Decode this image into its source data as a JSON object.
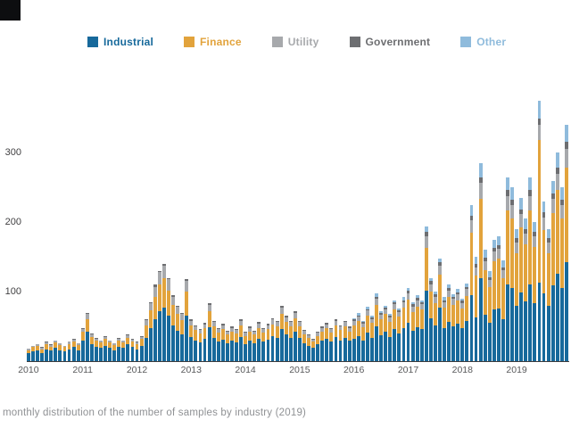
{
  "legend": {
    "items": [
      {
        "label": "Industrial",
        "color": "#17699B"
      },
      {
        "label": "Finance",
        "color": "#E2A33C"
      },
      {
        "label": "Utility",
        "color": "#A7A9AC"
      },
      {
        "label": "Government",
        "color": "#6D6E71"
      },
      {
        "label": "Other",
        "color": "#8FBBDC"
      }
    ]
  },
  "caption": {
    "text": "monthly distribution of the number of samples by industry (2019)"
  },
  "chart_data": {
    "type": "bar",
    "stacked": true,
    "title": "",
    "xlabel": "",
    "ylabel": "",
    "ylim": [
      0,
      420
    ],
    "grid": false,
    "legend_position": "top",
    "y_tick_labels": [
      "100",
      "200",
      "300"
    ],
    "x_tick_labels": [
      "2010",
      "2011",
      "2012",
      "2013",
      "2014",
      "2015",
      "2016",
      "2017",
      "2018",
      "2019"
    ],
    "bars_per_x_label": 12,
    "series": [
      {
        "name": "Industrial",
        "color": "#17699B",
        "values": [
          11,
          14,
          15,
          12,
          17,
          15,
          19,
          16,
          14,
          17,
          20,
          16,
          30,
          43,
          25,
          21,
          19,
          22,
          19,
          16,
          21,
          19,
          24,
          20,
          17,
          22,
          33,
          47,
          60,
          72,
          77,
          66,
          52,
          44,
          38,
          65,
          35,
          30,
          27,
          32,
          49,
          34,
          28,
          31,
          26,
          29,
          27,
          35,
          24,
          29,
          26,
          32,
          28,
          31,
          36,
          34,
          46,
          38,
          34,
          42,
          34,
          26,
          22,
          19,
          24,
          29,
          32,
          28,
          35,
          30,
          34,
          29,
          32,
          36,
          30,
          41,
          34,
          50,
          37,
          42,
          35,
          46,
          40,
          48,
          55,
          44,
          49,
          46,
          101,
          62,
          52,
          77,
          48,
          57,
          50,
          54,
          47,
          58,
          95,
          63,
          120,
          67,
          55,
          74,
          76,
          61,
          111,
          105,
          80,
          99,
          86,
          111,
          84,
          113,
          97,
          80,
          109,
          126,
          105,
          143
        ]
      },
      {
        "name": "Finance",
        "color": "#E2A33C",
        "values": [
          5,
          6,
          7,
          5,
          7,
          6,
          8,
          7,
          6,
          8,
          8,
          7,
          12,
          18,
          10,
          9,
          8,
          10,
          8,
          7,
          9,
          8,
          10,
          8,
          7,
          10,
          18,
          26,
          33,
          39,
          42,
          36,
          29,
          24,
          21,
          35,
          17,
          15,
          13,
          15,
          23,
          16,
          13,
          15,
          12,
          14,
          13,
          17,
          12,
          14,
          12,
          16,
          13,
          15,
          17,
          16,
          22,
          18,
          16,
          20,
          16,
          13,
          11,
          9,
          12,
          14,
          15,
          13,
          17,
          15,
          16,
          14,
          20,
          22,
          19,
          25,
          21,
          31,
          23,
          26,
          22,
          28,
          24,
          29,
          34,
          27,
          30,
          28,
          62,
          38,
          32,
          47,
          29,
          35,
          31,
          33,
          29,
          36,
          90,
          60,
          114,
          64,
          52,
          70,
          72,
          58,
          106,
          100,
          76,
          94,
          82,
          106,
          80,
          206,
          92,
          76,
          104,
          120,
          100,
          136
        ]
      },
      {
        "name": "Utility",
        "color": "#A7A9AC",
        "values": [
          2,
          2,
          3,
          2,
          3,
          2,
          3,
          3,
          2,
          3,
          3,
          3,
          5,
          7,
          4,
          3,
          3,
          3,
          3,
          3,
          3,
          3,
          3,
          3,
          3,
          3,
          8,
          11,
          14,
          17,
          18,
          16,
          12,
          10,
          9,
          15,
          6,
          6,
          5,
          6,
          9,
          6,
          5,
          6,
          5,
          5,
          5,
          6,
          5,
          5,
          5,
          6,
          5,
          6,
          7,
          6,
          9,
          7,
          6,
          8,
          6,
          5,
          4,
          3,
          5,
          5,
          6,
          5,
          6,
          6,
          6,
          5,
          6,
          6,
          5,
          7,
          6,
          9,
          7,
          7,
          6,
          8,
          7,
          8,
          9,
          8,
          9,
          8,
          17,
          11,
          9,
          13,
          8,
          10,
          9,
          9,
          8,
          10,
          18,
          12,
          23,
          13,
          10,
          14,
          14,
          12,
          21,
          20,
          15,
          19,
          16,
          21,
          16,
          22,
          18,
          15,
          21,
          24,
          20,
          27
        ]
      },
      {
        "name": "Government",
        "color": "#6D6E71",
        "values": [
          0,
          0,
          0,
          1,
          1,
          1,
          0,
          0,
          0,
          0,
          1,
          0,
          1,
          2,
          1,
          1,
          0,
          1,
          0,
          0,
          1,
          0,
          1,
          1,
          1,
          1,
          1,
          1,
          3,
          2,
          3,
          2,
          2,
          2,
          2,
          3,
          2,
          1,
          1,
          2,
          3,
          2,
          2,
          2,
          1,
          2,
          1,
          2,
          1,
          2,
          1,
          2,
          2,
          2,
          2,
          2,
          3,
          3,
          2,
          2,
          2,
          1,
          1,
          1,
          1,
          2,
          2,
          2,
          2,
          1,
          2,
          2,
          2,
          2,
          2,
          2,
          2,
          3,
          2,
          2,
          2,
          3,
          2,
          3,
          3,
          3,
          3,
          3,
          6,
          4,
          3,
          5,
          3,
          3,
          3,
          3,
          3,
          3,
          7,
          5,
          8,
          5,
          4,
          5,
          5,
          4,
          8,
          7,
          6,
          7,
          6,
          8,
          6,
          8,
          7,
          6,
          8,
          9,
          7,
          10
        ]
      },
      {
        "name": "Other",
        "color": "#8FBBDC",
        "values": [
          0,
          0,
          0,
          0,
          0,
          0,
          0,
          0,
          0,
          0,
          0,
          0,
          0,
          0,
          0,
          0,
          0,
          0,
          0,
          0,
          0,
          0,
          0,
          0,
          0,
          0,
          0,
          0,
          0,
          0,
          0,
          0,
          0,
          0,
          0,
          0,
          0,
          0,
          0,
          0,
          0,
          0,
          0,
          0,
          0,
          0,
          0,
          0,
          0,
          0,
          0,
          0,
          0,
          0,
          0,
          0,
          0,
          0,
          0,
          0,
          0,
          0,
          0,
          0,
          0,
          0,
          0,
          0,
          0,
          0,
          0,
          0,
          2,
          4,
          2,
          3,
          3,
          4,
          3,
          3,
          3,
          3,
          3,
          4,
          4,
          3,
          4,
          3,
          8,
          5,
          4,
          6,
          4,
          5,
          3,
          5,
          3,
          5,
          15,
          10,
          20,
          11,
          9,
          12,
          13,
          10,
          19,
          18,
          13,
          16,
          15,
          19,
          14,
          26,
          16,
          13,
          18,
          21,
          18,
          24
        ]
      }
    ]
  }
}
